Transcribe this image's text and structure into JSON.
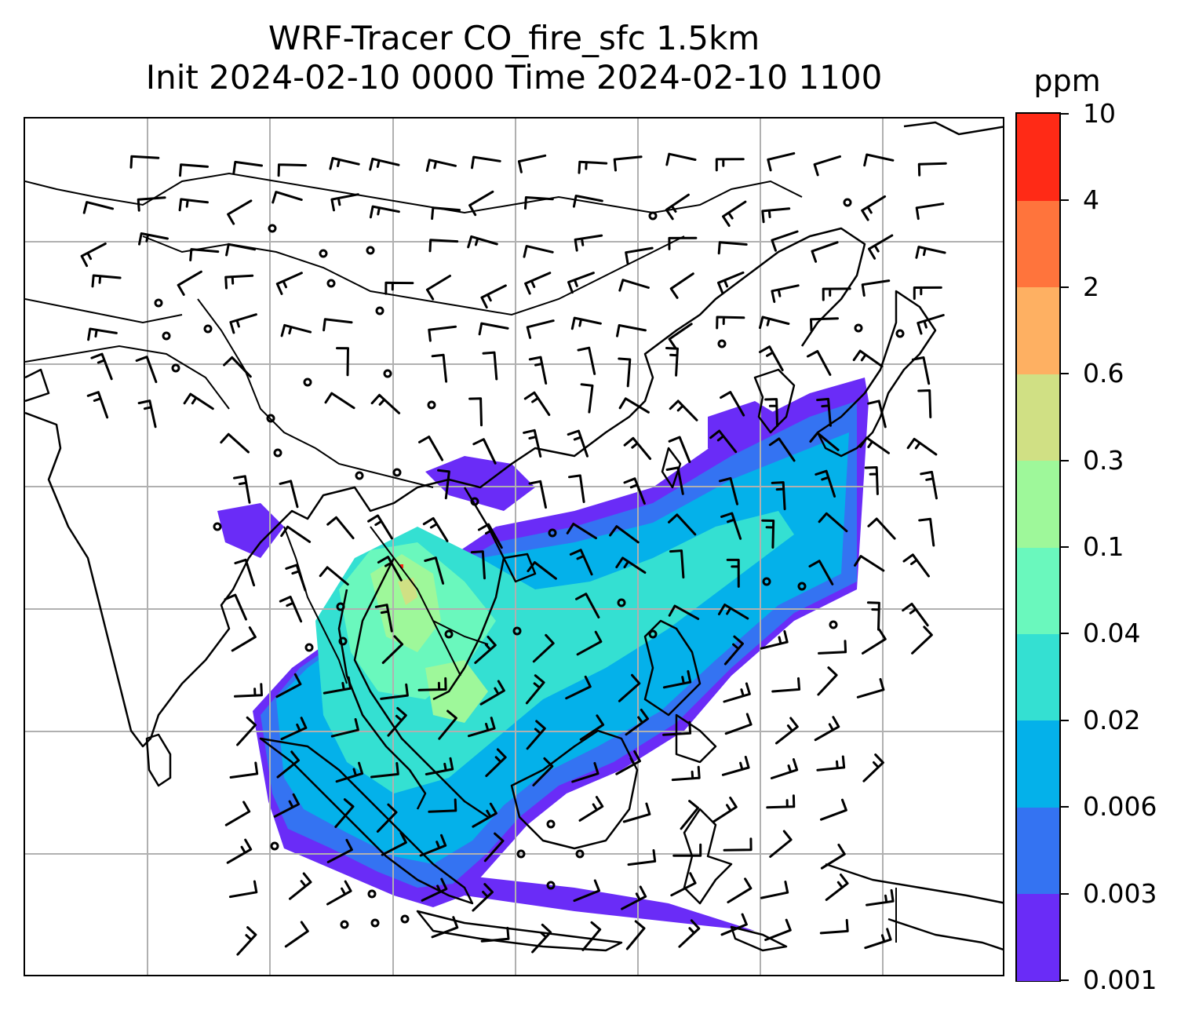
{
  "figure": {
    "title_line1": "WRF-Tracer CO_fire_sfc 1.5km",
    "title_line2": "Init 2024-02-10 0000 Time 2024-02-10 1100"
  },
  "colorbar": {
    "unit": "ppm",
    "levels": [
      "0.001",
      "0.003",
      "0.006",
      "0.02",
      "0.04",
      "0.1",
      "0.3",
      "0.6",
      "2",
      "4",
      "10"
    ],
    "colors": [
      "#6a2cf7",
      "#3473f2",
      "#04b1ea",
      "#34e0d2",
      "#6af8bd",
      "#9ef89a",
      "#d0e084",
      "#feb062",
      "#ff743c",
      "#ff2a16"
    ]
  },
  "map": {
    "variable": "CO_fire_sfc",
    "level": "1.5km",
    "gridlines": true,
    "features": [
      "coastlines",
      "country-borders",
      "gridlines",
      "wind-barbs",
      "calm-wind-circles",
      "tracer-shading"
    ]
  }
}
